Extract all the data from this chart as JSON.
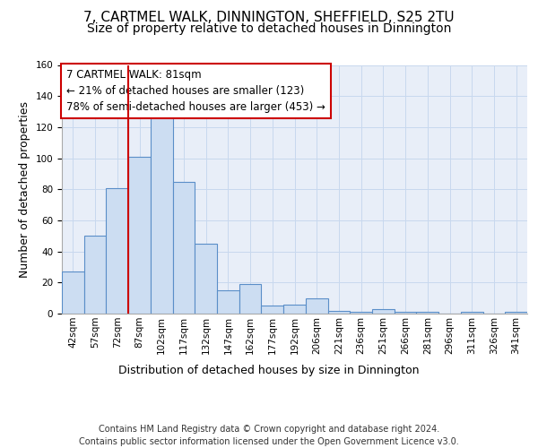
{
  "title1": "7, CARTMEL WALK, DINNINGTON, SHEFFIELD, S25 2TU",
  "title2": "Size of property relative to detached houses in Dinnington",
  "xlabel": "Distribution of detached houses by size in Dinnington",
  "ylabel": "Number of detached properties",
  "bar_categories": [
    "42sqm",
    "57sqm",
    "72sqm",
    "87sqm",
    "102sqm",
    "117sqm",
    "132sqm",
    "147sqm",
    "162sqm",
    "177sqm",
    "192sqm",
    "206sqm",
    "221sqm",
    "236sqm",
    "251sqm",
    "266sqm",
    "281sqm",
    "296sqm",
    "311sqm",
    "326sqm",
    "341sqm"
  ],
  "bar_values": [
    27,
    50,
    81,
    101,
    131,
    85,
    45,
    15,
    19,
    5,
    6,
    10,
    2,
    1,
    3,
    1,
    1,
    0,
    1,
    0,
    1
  ],
  "bar_color": "#ccddf2",
  "bar_edge_color": "#5a8ec8",
  "vline_x_index": 3,
  "vline_color": "#cc0000",
  "annotation_text": "7 CARTMEL WALK: 81sqm\n← 21% of detached houses are smaller (123)\n78% of semi-detached houses are larger (453) →",
  "annotation_box_color": "#ffffff",
  "annotation_box_edge_color": "#cc0000",
  "ylim": [
    0,
    160
  ],
  "yticks": [
    0,
    20,
    40,
    60,
    80,
    100,
    120,
    140,
    160
  ],
  "grid_color": "#c8d8ee",
  "background_color": "#e8eef8",
  "footer_text": "Contains HM Land Registry data © Crown copyright and database right 2024.\nContains public sector information licensed under the Open Government Licence v3.0.",
  "title_fontsize": 11,
  "subtitle_fontsize": 10,
  "annotation_fontsize": 8.5,
  "axis_label_fontsize": 9,
  "tick_fontsize": 7.5,
  "footer_fontsize": 7
}
